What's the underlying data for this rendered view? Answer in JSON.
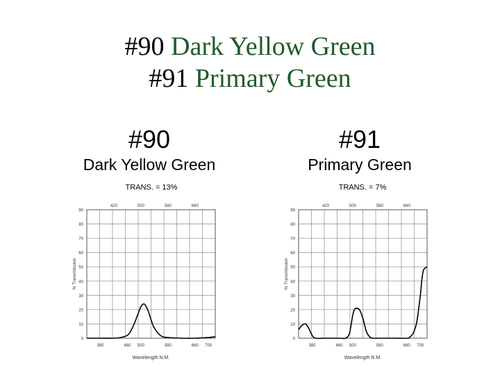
{
  "slide": {
    "title_line1_number": "#90",
    "title_line1_name": "Dark Yellow Green",
    "title_line2_number": "#91",
    "title_line2_name": "Primary Green",
    "accent_color": "#1f5a2a"
  },
  "chart_data": [
    {
      "type": "line",
      "title": "#90",
      "subtitle": "Dark Yellow Green",
      "annotation": "TRANS. = 13%",
      "xlabel": "Wavelength N.M.",
      "ylabel": "% Transmission",
      "xlim": [
        340,
        720
      ],
      "ylim": [
        0,
        90
      ],
      "x_ticks_bottom": [
        "380",
        "460",
        "500",
        "580",
        "660",
        "700"
      ],
      "x_ticks_top": [
        "420",
        "500",
        "580",
        "660"
      ],
      "y_ticks": [
        "0",
        "10",
        "20",
        "30",
        "40",
        "50",
        "60",
        "70",
        "80",
        "90"
      ],
      "grid": true,
      "series": [
        {
          "x": [
            340,
            380,
            420,
            440,
            460,
            470,
            480,
            490,
            500,
            510,
            520,
            530,
            540,
            560,
            580,
            620,
            660,
            700,
            720
          ],
          "values": [
            0,
            0,
            0,
            0.5,
            2,
            5,
            10,
            16,
            22,
            24,
            20,
            13,
            7,
            1.5,
            0.5,
            0,
            0,
            0.5,
            1
          ]
        }
      ]
    },
    {
      "type": "line",
      "title": "#91",
      "subtitle": "Primary Green",
      "annotation": "TRANS. = 7%",
      "xlabel": "Wavelength N.M.",
      "ylabel": "% Transmission",
      "xlim": [
        340,
        720
      ],
      "ylim": [
        0,
        90
      ],
      "x_ticks_bottom": [
        "380",
        "460",
        "500",
        "580",
        "660",
        "700"
      ],
      "x_ticks_top": [
        "420",
        "500",
        "580",
        "660"
      ],
      "y_ticks": [
        "0",
        "10",
        "20",
        "30",
        "40",
        "50",
        "60",
        "70",
        "80",
        "90"
      ],
      "grid": true,
      "series": [
        {
          "x": [
            340,
            350,
            360,
            370,
            380,
            390,
            420,
            460,
            480,
            490,
            495,
            500,
            505,
            510,
            520,
            530,
            540,
            550,
            560,
            580,
            620,
            660,
            670,
            680,
            690,
            700,
            705,
            710,
            720
          ],
          "values": [
            6,
            9,
            10,
            7,
            2,
            0,
            0,
            0,
            0,
            3,
            9,
            16,
            20,
            21,
            20,
            14,
            5,
            1,
            0,
            0,
            0,
            0,
            1,
            4,
            12,
            30,
            42,
            48,
            50
          ]
        }
      ]
    }
  ]
}
